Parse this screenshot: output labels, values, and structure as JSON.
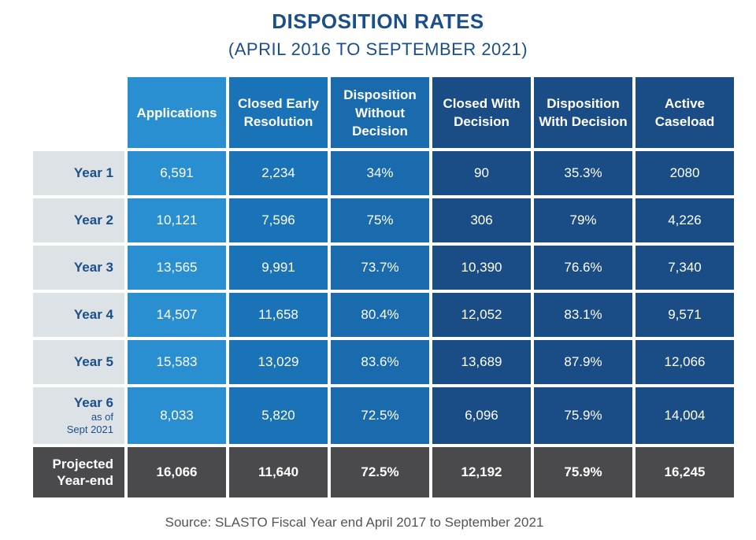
{
  "title": "DISPOSITION RATES",
  "subtitle": "(APRIL 2016 TO SEPTEMBER 2021)",
  "source": "Source: SLASTO Fiscal Year end April 2017 to September 2021",
  "colors": {
    "title": "#1b4f8a",
    "applications": "#2a8fd0",
    "closed_early": "#1a73b6",
    "disposition_without": "#1a6aae",
    "decision_columns": "#1a4c86",
    "row_label_bg": "#dde2e6",
    "projected_bg": "#4a4a4c"
  },
  "chart_data": {
    "type": "table",
    "title": "DISPOSITION RATES",
    "subtitle": "(APRIL 2016 TO SEPTEMBER 2021)",
    "columns": [
      "Applications",
      "Closed Early Resolution",
      "Disposition Without Decision",
      "Closed With Decision",
      "Disposition With Decision",
      "Active Caseload"
    ],
    "rows": [
      {
        "label": "Year 1",
        "note": "",
        "values": [
          "6,591",
          "2,234",
          "34%",
          "90",
          "35.3%",
          "2080"
        ]
      },
      {
        "label": "Year 2",
        "note": "",
        "values": [
          "10,121",
          "7,596",
          "75%",
          "306",
          "79%",
          "4,226"
        ]
      },
      {
        "label": "Year 3",
        "note": "",
        "values": [
          "13,565",
          "9,991",
          "73.7%",
          "10,390",
          "76.6%",
          "7,340"
        ]
      },
      {
        "label": "Year 4",
        "note": "",
        "values": [
          "14,507",
          "11,658",
          "80.4%",
          "12,052",
          "83.1%",
          "9,571"
        ]
      },
      {
        "label": "Year 5",
        "note": "",
        "values": [
          "15,583",
          "13,029",
          "83.6%",
          "13,689",
          "87.9%",
          "12,066"
        ]
      },
      {
        "label": "Year 6",
        "note": "as of",
        "note2": "Sept 2021",
        "values": [
          "8,033",
          "5,820",
          "72.5%",
          "6,096",
          "75.9%",
          "14,004"
        ]
      }
    ],
    "projected": {
      "label_line1": "Projected",
      "label_line2": "Year-end",
      "values": [
        "16,066",
        "11,640",
        "72.5%",
        "12,192",
        "75.9%",
        "16,245"
      ]
    },
    "source": "Source: SLASTO Fiscal Year end April 2017 to September 2021"
  }
}
